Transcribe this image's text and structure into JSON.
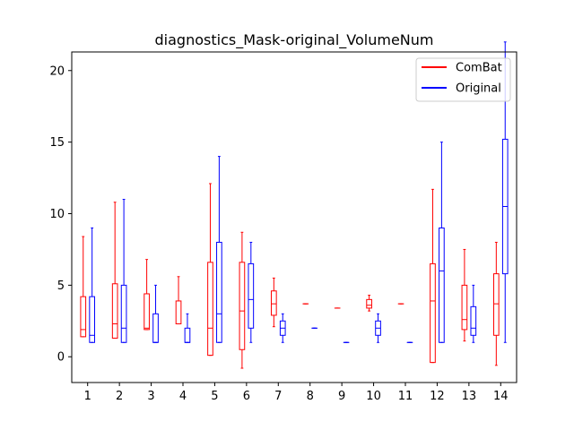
{
  "chart_data": {
    "type": "boxplot",
    "title": "diagnostics_Mask-original_VolumeNum",
    "xlabel": "",
    "ylabel": "",
    "categories": [
      "1",
      "2",
      "3",
      "4",
      "5",
      "6",
      "7",
      "8",
      "9",
      "10",
      "11",
      "12",
      "13",
      "14"
    ],
    "ylim": [
      -1.8,
      21.3
    ],
    "yticks": [
      0,
      5,
      10,
      15,
      20
    ],
    "legend": {
      "placement": "top-right"
    },
    "series": [
      {
        "name": "ComBat",
        "color": "#ff0000",
        "boxes": [
          {
            "whislo": 1.4,
            "q1": 1.4,
            "med": 1.9,
            "q3": 4.2,
            "whishi": 8.4
          },
          {
            "whislo": 1.3,
            "q1": 1.3,
            "med": 2.3,
            "q3": 5.1,
            "whishi": 10.8
          },
          {
            "whislo": 1.9,
            "q1": 1.9,
            "med": 2.0,
            "q3": 4.4,
            "whishi": 6.8
          },
          {
            "whislo": 2.3,
            "q1": 2.3,
            "med": 2.3,
            "q3": 3.9,
            "whishi": 5.6
          },
          {
            "whislo": 0.1,
            "q1": 0.1,
            "med": 2.0,
            "q3": 6.6,
            "whishi": 12.1
          },
          {
            "whislo": -0.8,
            "q1": 0.5,
            "med": 3.2,
            "q3": 6.6,
            "whishi": 8.7
          },
          {
            "whislo": 2.1,
            "q1": 2.9,
            "med": 3.7,
            "q3": 4.6,
            "whishi": 5.5
          },
          {
            "whislo": 3.7,
            "q1": 3.7,
            "med": 3.7,
            "q3": 3.7,
            "whishi": 3.7
          },
          {
            "whislo": 3.4,
            "q1": 3.4,
            "med": 3.4,
            "q3": 3.4,
            "whishi": 3.4
          },
          {
            "whislo": 3.2,
            "q1": 3.4,
            "med": 3.6,
            "q3": 4.0,
            "whishi": 4.3
          },
          {
            "whislo": 3.7,
            "q1": 3.7,
            "med": 3.7,
            "q3": 3.7,
            "whishi": 3.7
          },
          {
            "whislo": -0.4,
            "q1": -0.4,
            "med": 3.9,
            "q3": 6.5,
            "whishi": 11.7
          },
          {
            "whislo": 1.1,
            "q1": 1.9,
            "med": 2.6,
            "q3": 5.0,
            "whishi": 7.5
          },
          {
            "whislo": -0.6,
            "q1": 1.5,
            "med": 3.7,
            "q3": 5.8,
            "whishi": 8.0
          }
        ]
      },
      {
        "name": "Original",
        "color": "#0000ff",
        "boxes": [
          {
            "whislo": 1.0,
            "q1": 1.0,
            "med": 1.5,
            "q3": 4.2,
            "whishi": 9.0
          },
          {
            "whislo": 1.0,
            "q1": 1.0,
            "med": 2.0,
            "q3": 5.0,
            "whishi": 11.0
          },
          {
            "whislo": 1.0,
            "q1": 1.0,
            "med": 1.0,
            "q3": 3.0,
            "whishi": 5.0
          },
          {
            "whislo": 1.0,
            "q1": 1.0,
            "med": 1.0,
            "q3": 2.0,
            "whishi": 3.0
          },
          {
            "whislo": 1.0,
            "q1": 1.0,
            "med": 3.0,
            "q3": 8.0,
            "whishi": 14.0
          },
          {
            "whislo": 1.0,
            "q1": 2.0,
            "med": 4.0,
            "q3": 6.5,
            "whishi": 8.0
          },
          {
            "whislo": 1.0,
            "q1": 1.5,
            "med": 2.0,
            "q3": 2.5,
            "whishi": 3.0
          },
          {
            "whislo": 2.0,
            "q1": 2.0,
            "med": 2.0,
            "q3": 2.0,
            "whishi": 2.0
          },
          {
            "whislo": 1.0,
            "q1": 1.0,
            "med": 1.0,
            "q3": 1.0,
            "whishi": 1.0
          },
          {
            "whislo": 1.0,
            "q1": 1.5,
            "med": 2.0,
            "q3": 2.5,
            "whishi": 3.0
          },
          {
            "whislo": 1.0,
            "q1": 1.0,
            "med": 1.0,
            "q3": 1.0,
            "whishi": 1.0
          },
          {
            "whislo": 1.0,
            "q1": 1.0,
            "med": 6.0,
            "q3": 9.0,
            "whishi": 15.0
          },
          {
            "whislo": 1.0,
            "q1": 1.5,
            "med": 2.0,
            "q3": 3.5,
            "whishi": 5.0
          },
          {
            "whislo": 1.0,
            "q1": 5.8,
            "med": 10.5,
            "q3": 15.2,
            "whishi": 22.0
          }
        ]
      }
    ]
  }
}
